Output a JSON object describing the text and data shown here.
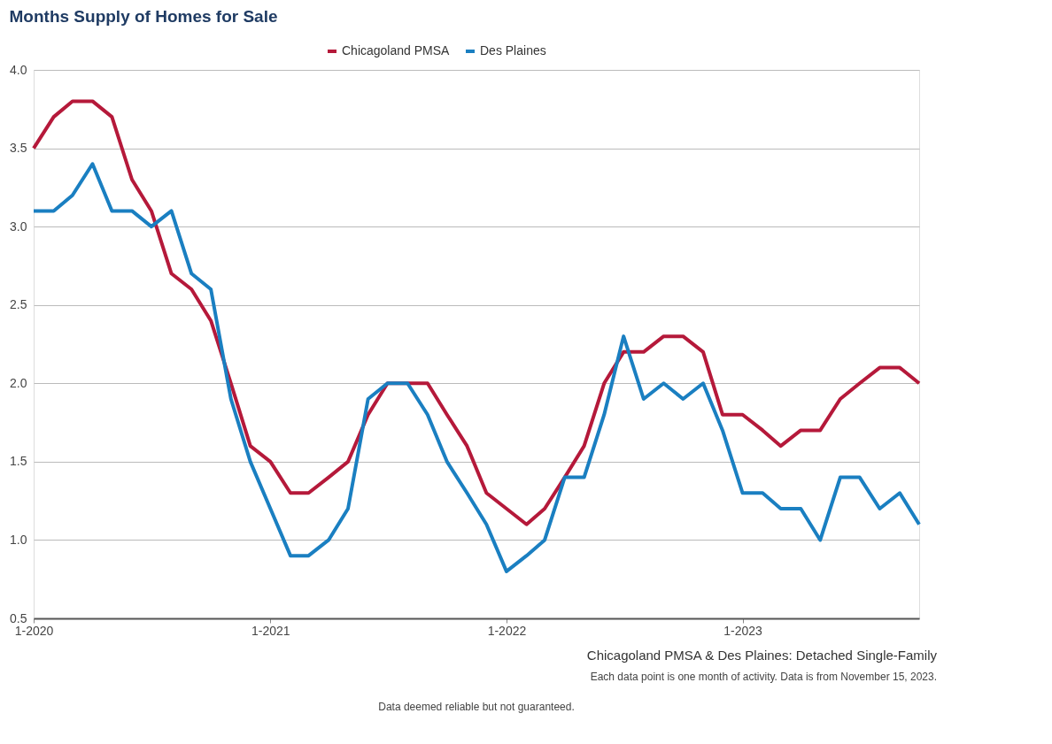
{
  "chart_data": {
    "type": "line",
    "title": "Months Supply of Homes for Sale",
    "x": [
      "2020-01",
      "2020-02",
      "2020-03",
      "2020-04",
      "2020-05",
      "2020-06",
      "2020-07",
      "2020-08",
      "2020-09",
      "2020-10",
      "2020-11",
      "2020-12",
      "2021-01",
      "2021-02",
      "2021-03",
      "2021-04",
      "2021-05",
      "2021-06",
      "2021-07",
      "2021-08",
      "2021-09",
      "2021-10",
      "2021-11",
      "2021-12",
      "2022-01",
      "2022-02",
      "2022-03",
      "2022-04",
      "2022-05",
      "2022-06",
      "2022-07",
      "2022-08",
      "2022-09",
      "2022-10",
      "2022-11",
      "2022-12",
      "2023-01",
      "2023-02",
      "2023-03",
      "2023-04",
      "2023-05",
      "2023-06",
      "2023-07",
      "2023-08",
      "2023-09",
      "2023-10"
    ],
    "series": [
      {
        "name": "Chicagoland PMSA",
        "color": "#b5193a",
        "values": [
          3.5,
          3.7,
          3.8,
          3.8,
          3.7,
          3.3,
          3.1,
          2.7,
          2.6,
          2.4,
          2.0,
          1.6,
          1.5,
          1.3,
          1.3,
          1.4,
          1.5,
          1.8,
          2.0,
          2.0,
          2.0,
          1.8,
          1.6,
          1.3,
          1.2,
          1.1,
          1.2,
          1.4,
          1.6,
          2.0,
          2.2,
          2.2,
          2.3,
          2.3,
          2.2,
          1.8,
          1.8,
          1.7,
          1.6,
          1.7,
          1.7,
          1.9,
          2.0,
          2.1,
          2.1,
          2.0
        ]
      },
      {
        "name": "Des Plaines",
        "color": "#1a7fc1",
        "values": [
          3.1,
          3.1,
          3.2,
          3.4,
          3.1,
          3.1,
          3.0,
          3.1,
          2.7,
          2.6,
          1.9,
          1.5,
          1.2,
          0.9,
          0.9,
          1.0,
          1.2,
          1.9,
          2.0,
          2.0,
          1.8,
          1.5,
          1.3,
          1.1,
          0.8,
          0.9,
          1.0,
          1.4,
          1.4,
          1.8,
          2.3,
          1.9,
          2.0,
          1.9,
          2.0,
          1.7,
          1.3,
          1.3,
          1.2,
          1.2,
          1.0,
          1.4,
          1.4,
          1.2,
          1.3,
          1.1
        ]
      }
    ],
    "xlim": [
      "2020-01",
      "2023-10"
    ],
    "xticks": [
      {
        "value": "2020-01",
        "label": "1-2020"
      },
      {
        "value": "2021-01",
        "label": "1-2021"
      },
      {
        "value": "2022-01",
        "label": "1-2022"
      },
      {
        "value": "2023-01",
        "label": "1-2023"
      }
    ],
    "ylim": [
      0.5,
      4.0
    ],
    "yticks": [
      {
        "value": 0.5,
        "label": "0.5"
      },
      {
        "value": 1.0,
        "label": "1.0"
      },
      {
        "value": 1.5,
        "label": "1.5"
      },
      {
        "value": 2.0,
        "label": "2.0"
      },
      {
        "value": 2.5,
        "label": "2.5"
      },
      {
        "value": 3.0,
        "label": "3.0"
      },
      {
        "value": 3.5,
        "label": "3.5"
      },
      {
        "value": 4.0,
        "label": "4.0"
      }
    ],
    "grid": "y",
    "legend": "top",
    "marker": "none",
    "line_style": "solid",
    "annotations": [
      "Chicagoland PMSA & Des Plaines: Detached Single-Family",
      "Each data point is one month of activity. Data is from November 15, 2023.",
      "Data deemed reliable but not guaranteed."
    ]
  }
}
